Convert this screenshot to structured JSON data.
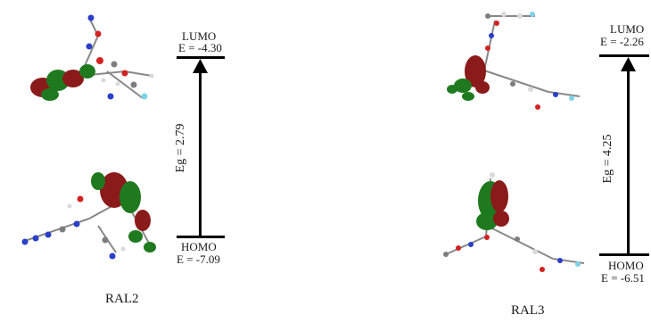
{
  "panels": [
    {
      "name": "RAL2",
      "lumo_label": "LUMO",
      "lumo_energy": "E = -4.30",
      "homo_label": "HOMO",
      "homo_energy": "E = -7.09",
      "gap_label": "Eg = 2.79"
    },
    {
      "name": "RAL3",
      "lumo_label": "LUMO",
      "lumo_energy": "E = -2.26",
      "homo_label": "HOMO",
      "homo_energy": "E = -6.51",
      "gap_label": "Eg = 4.25"
    }
  ],
  "colors": {
    "orbital_positive": "#8b1a1a",
    "orbital_negative": "#1f7a1f",
    "atom_carbon": "#7d7d7d",
    "atom_hydrogen": "#d9d9d9",
    "atom_oxygen": "#d22222",
    "atom_nitrogen": "#2a3fc9",
    "atom_fluorine": "#7fd3e6",
    "level_line": "#000000"
  }
}
